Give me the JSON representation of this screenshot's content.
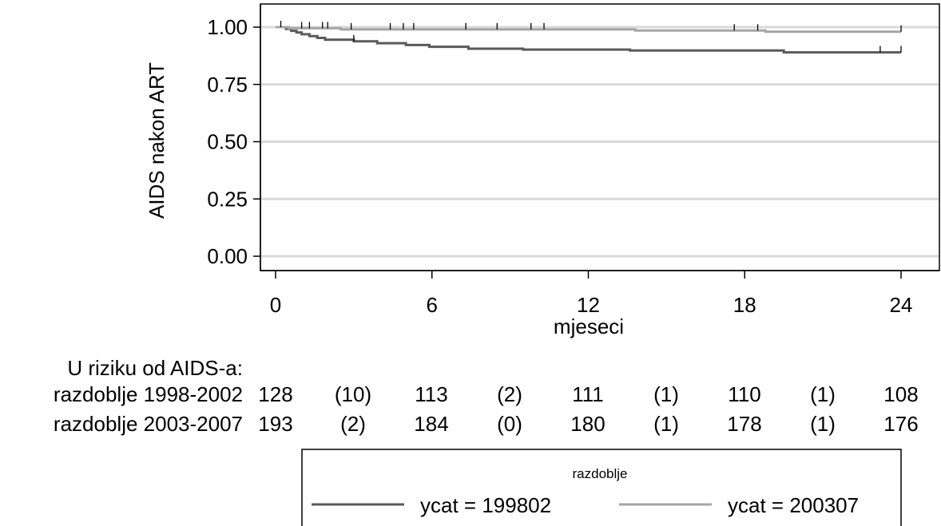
{
  "chart_data": {
    "type": "line",
    "title": "",
    "xlabel": "mjeseci",
    "ylabel": "AIDS nakon ART",
    "xlim": [
      0,
      24
    ],
    "ylim": [
      0,
      1
    ],
    "x_ticks": [
      "0",
      "6",
      "12",
      "18",
      "24"
    ],
    "y_ticks": [
      "0.00",
      "0.25",
      "0.50",
      "0.75",
      "1.00"
    ],
    "grid": true,
    "series": [
      {
        "name": "ycat = 199802",
        "color": "#5a5a5a",
        "x": [
          0,
          0.4,
          0.6,
          0.8,
          1.0,
          1.3,
          1.6,
          1.9,
          3.0,
          3.9,
          5.0,
          5.9,
          7.4,
          9.5,
          13.6,
          19.5,
          24
        ],
        "y": [
          1.0,
          0.992,
          0.984,
          0.977,
          0.969,
          0.961,
          0.953,
          0.945,
          0.938,
          0.93,
          0.922,
          0.914,
          0.906,
          0.902,
          0.898,
          0.89,
          0.89
        ],
        "censor_x": [
          3.0,
          23.2,
          24
        ],
        "censor_y": [
          0.938,
          0.89,
          0.89
        ]
      },
      {
        "name": "ycat = 200307",
        "color": "#a6a6a6",
        "x": [
          0,
          0.5,
          2.5,
          13.8,
          18.8,
          24
        ],
        "y": [
          1.0,
          0.995,
          0.99,
          0.985,
          0.98,
          0.98
        ],
        "censor_x": [
          0.2,
          1.0,
          1.3,
          1.8,
          2.0,
          2.9,
          4.4,
          4.9,
          5.3,
          7.3,
          8.5,
          9.8,
          10.3,
          17.6,
          18.5,
          24
        ],
        "censor_y": [
          1.0,
          0.995,
          0.995,
          0.995,
          0.995,
          0.99,
          0.99,
          0.99,
          0.99,
          0.99,
          0.99,
          0.99,
          0.99,
          0.985,
          0.985,
          0.98
        ]
      }
    ],
    "risk_table": {
      "header": "U riziku od AIDS-a:",
      "rows": [
        {
          "label": "razdoblje 1998-2002",
          "values": [
            "128",
            "(10)",
            "113",
            "(2)",
            "111",
            "(1)",
            "110",
            "(1)",
            "108"
          ]
        },
        {
          "label": "razdoblje 2003-2007",
          "values": [
            "193",
            "(2)",
            "184",
            "(0)",
            "180",
            "(1)",
            "178",
            "(1)",
            "176"
          ]
        }
      ]
    },
    "legend": {
      "title": "razdoblje",
      "position": "bottom",
      "items": [
        "ycat = 199802",
        "ycat = 200307"
      ]
    }
  }
}
